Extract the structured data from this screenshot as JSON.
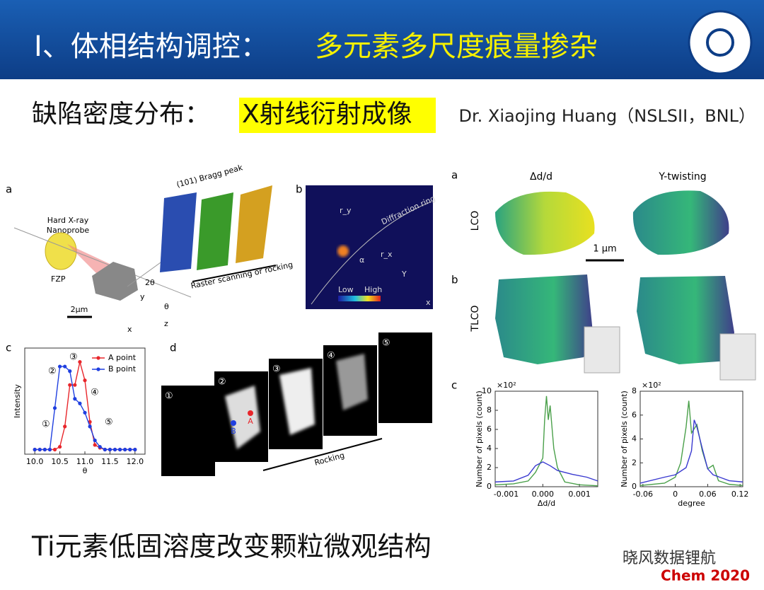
{
  "header": {
    "title": "I、体相结构调控：",
    "title_highlight": "多元素多尺度痕量掺杂"
  },
  "subtitle": {
    "label": "缺陷密度分布：",
    "highlight": "X射线衍射成像",
    "credit": "Dr. Xiaojing Huang（NSLSII，BNL）"
  },
  "figure_left": {
    "panel_a": "a",
    "panel_b": "b",
    "panel_c": "c",
    "panel_d": "d",
    "probe_1": "Hard X-ray",
    "probe_2": "Nanoprobe",
    "fzp": "FZP",
    "bragg": "(101) Bragg peak",
    "raster": "Raster scanning or rocking",
    "scale": "2μm",
    "two_theta": "2θ",
    "ax_x": "x",
    "ax_y": "y",
    "ax_z": "z",
    "theta": "θ",
    "ring": "Diffraction ring",
    "low": "Low",
    "high": "High",
    "map_x": "x",
    "map_y": "Y",
    "r_y": "r_y",
    "r_x": "r_x",
    "alpha": "α",
    "rocking": "Rocking",
    "point_a": "A",
    "point_b": "B",
    "steps": [
      "①",
      "②",
      "③",
      "④",
      "⑤"
    ]
  },
  "chart_c": {
    "type": "line",
    "y_label": "Intensity",
    "x_label": "θ",
    "xlim": [
      9.8,
      12.2
    ],
    "ylim": [
      0,
      1.15
    ],
    "xticks": [
      {
        "value": 10,
        "label": "10.0"
      },
      {
        "value": 10.5,
        "label": "10.5"
      },
      {
        "value": 11,
        "label": "11.0"
      },
      {
        "value": 11.5,
        "label": "11.5"
      },
      {
        "value": 12,
        "label": "12.0"
      }
    ],
    "x": [
      10,
      10.1,
      10.2,
      10.3,
      10.4,
      10.5,
      10.6,
      10.7,
      10.8,
      10.9,
      11,
      11.1,
      11.2,
      11.3,
      11.4,
      11.5,
      11.6,
      11.7,
      11.8,
      11.9,
      12
    ],
    "markers": true,
    "series": [
      {
        "name": "A point",
        "color": "#e8262b",
        "values": [
          0.05,
          0.05,
          0.05,
          0.05,
          0.05,
          0.08,
          0.3,
          0.75,
          0.75,
          1.0,
          0.8,
          0.35,
          0.1,
          0.07,
          0.05,
          0.05,
          0.05,
          0.05,
          0.05,
          0.05,
          0.05
        ]
      },
      {
        "name": "B point",
        "color": "#1f3fe0",
        "values": [
          0.05,
          0.05,
          0.05,
          0.05,
          0.5,
          0.95,
          0.95,
          0.9,
          0.6,
          0.55,
          0.45,
          0.3,
          0.15,
          0.08,
          0.05,
          0.05,
          0.05,
          0.05,
          0.05,
          0.05,
          0.05
        ]
      }
    ]
  },
  "figure_right": {
    "panel_a": "a",
    "panel_b": "b",
    "panel_c": "c",
    "col_1": "Δd/d",
    "col_2": "Y-twisting",
    "row_1": "LCO",
    "row_2": "TLCO",
    "scale": "1 μm"
  },
  "hist_1": {
    "type": "line",
    "x_label": "Δd/d",
    "y_label": "Number of pixels (count)",
    "multiplier": "×10²",
    "xlim": [
      -0.0013,
      0.0015
    ],
    "ylim": [
      0,
      10
    ],
    "xticks": [
      -0.001,
      {
        "value": 0,
        "label": "0.000"
      },
      0.001
    ],
    "yticks": [
      0,
      2,
      4,
      6,
      8,
      10
    ],
    "series": [
      {
        "color": "#4aa04a",
        "x": [
          -0.0013,
          -0.0008,
          -0.0004,
          -0.0002,
          0,
          5e-05,
          0.0001,
          0.00015,
          0.0002,
          0.0003,
          0.0004,
          0.0006,
          0.001,
          0.0015
        ],
        "values": [
          0.2,
          0.3,
          0.6,
          1.5,
          3,
          7,
          9.5,
          7,
          8.5,
          4,
          2,
          0.5,
          0.2,
          0.1
        ]
      },
      {
        "color": "#3a3ad0",
        "x": [
          -0.0013,
          -0.0008,
          -0.0004,
          -0.0002,
          0,
          0.0002,
          0.0004,
          0.0008,
          0.0012,
          0.0015
        ],
        "values": [
          0.5,
          0.6,
          1.2,
          2.2,
          2.6,
          2.2,
          1.7,
          1.3,
          1.0,
          0.6
        ]
      }
    ]
  },
  "hist_2": {
    "type": "line",
    "x_label": "degree",
    "y_label": "Number of pixels (count)",
    "multiplier": "×10²",
    "xlim": [
      -0.065,
      0.125
    ],
    "ylim": [
      0,
      8
    ],
    "xticks": [
      -0.06,
      0,
      0.06,
      0.12
    ],
    "yticks": [
      0,
      2,
      4,
      6,
      8
    ],
    "series": [
      {
        "color": "#4aa04a",
        "x": [
          -0.065,
          -0.02,
          0,
          0.01,
          0.02,
          0.025,
          0.03,
          0.04,
          0.05,
          0.06,
          0.07,
          0.08,
          0.1,
          0.125
        ],
        "values": [
          0.1,
          0.3,
          0.8,
          2,
          5,
          7.2,
          4.5,
          5.2,
          3,
          1.5,
          1.8,
          0.5,
          0.2,
          0.1
        ]
      },
      {
        "color": "#3a3ad0",
        "x": [
          -0.065,
          -0.02,
          0,
          0.02,
          0.03,
          0.035,
          0.04,
          0.05,
          0.06,
          0.07,
          0.1,
          0.125
        ],
        "values": [
          0.3,
          0.8,
          1.0,
          1.6,
          3,
          5.6,
          5,
          3.2,
          1.5,
          1,
          0.5,
          0.4
        ]
      }
    ]
  },
  "footer": {
    "text": "Ti元素低固溶度改变颗粒微观结构",
    "watermark": "晓风数据锂航",
    "journal": "Chem 2020"
  }
}
